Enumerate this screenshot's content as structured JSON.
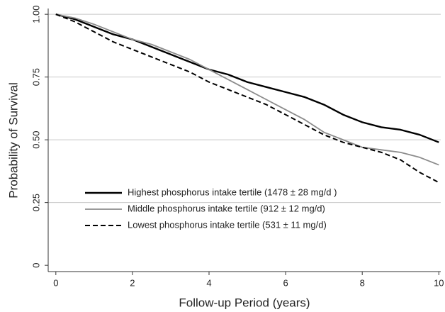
{
  "chart_data": {
    "type": "line",
    "xlabel": "Follow-up Period (years)",
    "ylabel": "Probability of Survival",
    "x": [
      0,
      0.5,
      1,
      1.5,
      2,
      2.5,
      3,
      3.5,
      4,
      4.5,
      5,
      5.5,
      6,
      6.5,
      7,
      7.5,
      8,
      8.5,
      9,
      9.5,
      10
    ],
    "series": [
      {
        "name": "Highest phosphorus intake tertile (1478 ± 28 mg/d )",
        "color": "#000000",
        "width": 2.4,
        "dashed": false,
        "values": [
          1.0,
          0.98,
          0.95,
          0.92,
          0.9,
          0.87,
          0.84,
          0.81,
          0.78,
          0.76,
          0.73,
          0.71,
          0.69,
          0.67,
          0.64,
          0.6,
          0.57,
          0.55,
          0.54,
          0.52,
          0.49
        ]
      },
      {
        "name": "Middle phosphorus intake tertile (912 ± 12 mg/d)",
        "color": "#8c8c8c",
        "width": 1.8,
        "dashed": false,
        "values": [
          1.0,
          0.985,
          0.96,
          0.93,
          0.9,
          0.88,
          0.85,
          0.82,
          0.78,
          0.74,
          0.7,
          0.66,
          0.62,
          0.58,
          0.53,
          0.5,
          0.47,
          0.46,
          0.45,
          0.43,
          0.4
        ]
      },
      {
        "name": "Lowest phosphorus intake tertile (531 ± 11 mg/d)",
        "color": "#000000",
        "width": 2,
        "dashed": true,
        "values": [
          1.0,
          0.97,
          0.93,
          0.89,
          0.86,
          0.83,
          0.8,
          0.77,
          0.73,
          0.7,
          0.67,
          0.64,
          0.6,
          0.56,
          0.52,
          0.49,
          0.47,
          0.45,
          0.42,
          0.37,
          0.33
        ]
      }
    ],
    "xlim": [
      -0.2,
      10.05
    ],
    "ylim": [
      -0.025,
      1.023
    ],
    "xticks": [
      0,
      2,
      4,
      6,
      8,
      10
    ],
    "yticks": [
      0,
      0.25,
      {
        "value": 0.5,
        "label": "0.50"
      },
      0.75,
      {
        "value": 1,
        "label": "1.00"
      }
    ],
    "grid": true
  }
}
